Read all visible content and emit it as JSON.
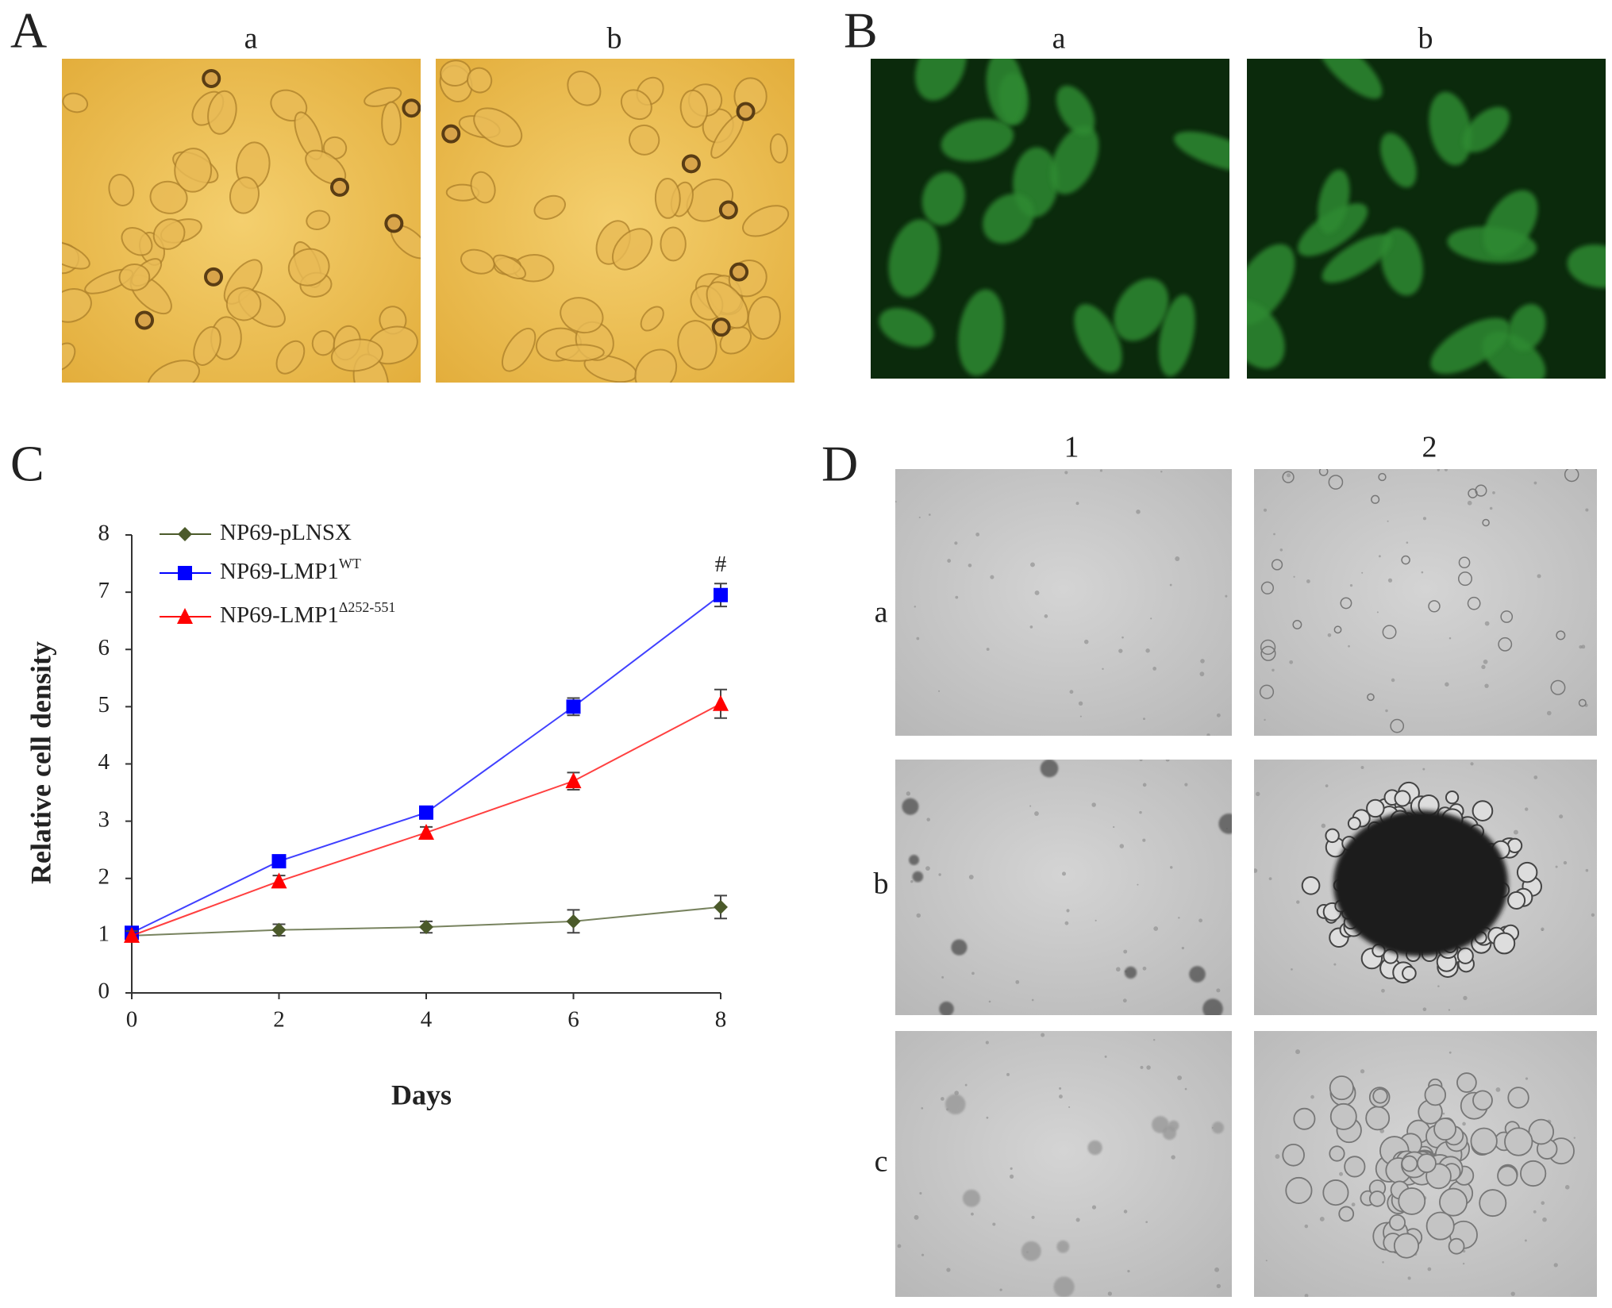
{
  "panels": {
    "A": {
      "label": "A",
      "columns": [
        "a",
        "b"
      ]
    },
    "B": {
      "label": "B",
      "columns": [
        "a",
        "b"
      ]
    },
    "C": {
      "label": "C"
    },
    "D": {
      "label": "D",
      "columns": [
        "1",
        "2"
      ],
      "rows": [
        "a",
        "b",
        "c"
      ]
    }
  },
  "chart_data": {
    "type": "line",
    "x": [
      0,
      2,
      4,
      6,
      8
    ],
    "xlabel": "Days",
    "ylabel": "Relative cell density",
    "xlim": [
      0,
      8
    ],
    "ylim": [
      0,
      8
    ],
    "xticks": [
      0,
      2,
      4,
      6,
      8
    ],
    "yticks": [
      0,
      1,
      2,
      3,
      4,
      5,
      6,
      7,
      8
    ],
    "annotation": "#",
    "series": [
      {
        "name": "NP69-pLNSX",
        "color": "#4b5a2a",
        "marker": "diamond",
        "values": [
          1.0,
          1.1,
          1.15,
          1.25,
          1.5
        ],
        "errors": [
          0.08,
          0.1,
          0.1,
          0.2,
          0.2
        ]
      },
      {
        "name": "NP69-LMP1",
        "name_superscript": "WT",
        "color": "#0000ff",
        "marker": "square",
        "values": [
          1.05,
          2.3,
          3.15,
          5.0,
          6.95
        ],
        "errors": [
          0.08,
          0.1,
          0.1,
          0.15,
          0.2
        ]
      },
      {
        "name": "NP69-LMP1",
        "name_superscript": "Δ252-551",
        "color": "#ff0000",
        "marker": "triangle",
        "values": [
          1.0,
          1.95,
          2.8,
          3.7,
          5.05
        ],
        "errors": [
          0.08,
          0.1,
          0.1,
          0.15,
          0.25
        ]
      }
    ]
  }
}
